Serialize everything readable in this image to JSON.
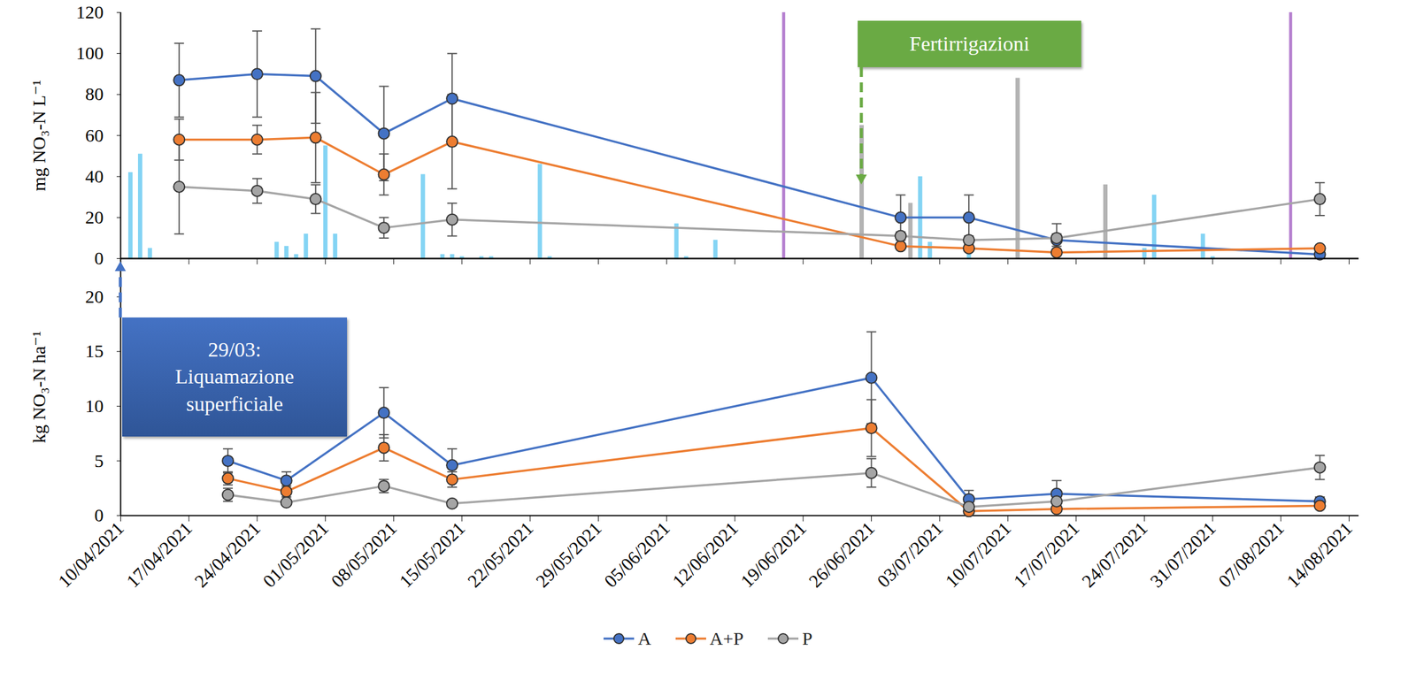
{
  "chart_data": [
    {
      "type": "line",
      "y_label": "mg NO₃-N L⁻¹",
      "x": [
        "2021-04-16",
        "2021-04-24",
        "2021-04-30",
        "2021-05-07",
        "2021-05-14",
        "2021-06-29",
        "2021-07-06",
        "2021-07-15",
        "2021-08-11"
      ],
      "xlim": [
        "2021-04-10",
        "2021-08-15"
      ],
      "xticks": [
        {
          "value": "2021-04-10",
          "label": "10/04/2021"
        },
        {
          "value": "2021-04-17",
          "label": "17/04/2021"
        },
        {
          "value": "2021-04-24",
          "label": "24/04/2021"
        },
        {
          "value": "2021-05-01",
          "label": "01/05/2021"
        },
        {
          "value": "2021-05-08",
          "label": "08/05/2021"
        },
        {
          "value": "2021-05-15",
          "label": "15/05/2021"
        },
        {
          "value": "2021-05-22",
          "label": "22/05/2021"
        },
        {
          "value": "2021-05-29",
          "label": "29/05/2021"
        },
        {
          "value": "2021-06-05",
          "label": "05/06/2021"
        },
        {
          "value": "2021-06-12",
          "label": "12/06/2021"
        },
        {
          "value": "2021-06-19",
          "label": "19/06/2021"
        },
        {
          "value": "2021-06-26",
          "label": "26/06/2021"
        },
        {
          "value": "2021-07-03",
          "label": "03/07/2021"
        },
        {
          "value": "2021-07-10",
          "label": "10/07/2021"
        },
        {
          "value": "2021-07-17",
          "label": "17/07/2021"
        },
        {
          "value": "2021-07-24",
          "label": "24/07/2021"
        },
        {
          "value": "2021-07-31",
          "label": "31/07/2021"
        },
        {
          "value": "2021-08-07",
          "label": "07/08/2021"
        },
        {
          "value": "2021-08-14",
          "label": "14/08/2021"
        }
      ],
      "tick_labels": "y",
      "ylim": [
        0,
        120
      ],
      "yticks": [
        0,
        20,
        40,
        60,
        80,
        100,
        120
      ],
      "series": [
        {
          "name": "A",
          "color": "#4472c4",
          "marker": "circle",
          "values": [
            87,
            90,
            89,
            61,
            78,
            20,
            20,
            9,
            2
          ],
          "errors": [
            18,
            21,
            23,
            23,
            22,
            11,
            11,
            3,
            1
          ]
        },
        {
          "name": "A+P",
          "color": "#ed7d31",
          "marker": "circle",
          "values": [
            58,
            58,
            59,
            41,
            57,
            6,
            5,
            3,
            5
          ],
          "errors": [
            10,
            7,
            22,
            10,
            23,
            1,
            1,
            1,
            1
          ]
        },
        {
          "name": "P",
          "color": "#a5a5a5",
          "marker": "circle",
          "values": [
            35,
            33,
            29,
            15,
            19,
            11,
            9,
            10,
            29
          ],
          "errors": [
            23,
            6,
            7,
            5,
            8,
            2,
            2,
            7,
            8
          ]
        }
      ],
      "bars": [
        {
          "type": "bar",
          "color": "#84d4f4",
          "x": [
            "2021-04-11",
            "2021-04-12",
            "2021-04-13",
            "2021-04-26",
            "2021-04-27",
            "2021-04-28",
            "2021-04-29",
            "2021-05-01",
            "2021-05-02",
            "2021-05-11",
            "2021-05-13",
            "2021-05-14",
            "2021-05-15",
            "2021-05-17",
            "2021-05-18",
            "2021-05-23",
            "2021-05-24",
            "2021-06-06",
            "2021-06-07",
            "2021-06-10",
            "2021-07-01",
            "2021-07-02",
            "2021-07-06",
            "2021-07-24",
            "2021-07-25",
            "2021-07-30",
            "2021-07-31"
          ],
          "values": [
            42,
            51,
            5,
            8,
            6,
            2,
            12,
            55,
            12,
            41,
            2,
            2,
            1,
            1,
            1,
            46,
            1,
            17,
            1,
            9,
            40,
            8,
            5,
            5,
            31,
            12,
            1
          ]
        },
        {
          "type": "bar",
          "color": "#b3b3b3",
          "x": [
            "2021-06-25",
            "2021-06-30",
            "2021-07-11",
            "2021-07-20"
          ],
          "values": [
            65,
            27,
            88,
            36
          ]
        }
      ],
      "vlines": {
        "x": [
          "2021-06-17",
          "2021-08-08"
        ],
        "color": "#b57fcf"
      },
      "annotations": [
        {
          "text": "Fertirrigazioni",
          "color": "#6aaa44"
        }
      ]
    },
    {
      "type": "line",
      "y_label": "kg NO₃-N ha⁻¹",
      "x": [
        "2021-04-21",
        "2021-04-27",
        "2021-05-07",
        "2021-05-14",
        "2021-06-26",
        "2021-07-06",
        "2021-07-15",
        "2021-08-11"
      ],
      "xlim": [
        "2021-04-10",
        "2021-08-15"
      ],
      "xticks": [
        {
          "value": "2021-04-10",
          "label": "10/04/2021"
        },
        {
          "value": "2021-04-17",
          "label": "17/04/2021"
        },
        {
          "value": "2021-04-24",
          "label": "24/04/2021"
        },
        {
          "value": "2021-05-01",
          "label": "01/05/2021"
        },
        {
          "value": "2021-05-08",
          "label": "08/05/2021"
        },
        {
          "value": "2021-05-15",
          "label": "15/05/2021"
        },
        {
          "value": "2021-05-22",
          "label": "22/05/2021"
        },
        {
          "value": "2021-05-29",
          "label": "29/05/2021"
        },
        {
          "value": "2021-06-05",
          "label": "05/06/2021"
        },
        {
          "value": "2021-06-12",
          "label": "12/06/2021"
        },
        {
          "value": "2021-06-19",
          "label": "19/06/2021"
        },
        {
          "value": "2021-06-26",
          "label": "26/06/2021"
        },
        {
          "value": "2021-07-03",
          "label": "03/07/2021"
        },
        {
          "value": "2021-07-10",
          "label": "10/07/2021"
        },
        {
          "value": "2021-07-17",
          "label": "17/07/2021"
        },
        {
          "value": "2021-07-24",
          "label": "24/07/2021"
        },
        {
          "value": "2021-07-31",
          "label": "31/07/2021"
        },
        {
          "value": "2021-08-07",
          "label": "07/08/2021"
        },
        {
          "value": "2021-08-14",
          "label": "14/08/2021"
        }
      ],
      "ylim": [
        0,
        23.5
      ],
      "yticks": [
        0,
        5,
        10,
        15,
        20
      ],
      "legend": "bottom",
      "series": [
        {
          "name": "A",
          "color": "#4472c4",
          "marker": "circle",
          "values": [
            5.0,
            3.2,
            9.4,
            4.6,
            12.6,
            1.5,
            2.0,
            1.3
          ],
          "errors": [
            1.1,
            0.8,
            2.3,
            1.5,
            4.2,
            0.8,
            1.2,
            0.4
          ]
        },
        {
          "name": "A+P",
          "color": "#ed7d31",
          "marker": "circle",
          "values": [
            3.4,
            2.2,
            6.2,
            3.3,
            8.0,
            0.4,
            0.6,
            0.9
          ],
          "errors": [
            0.6,
            0.5,
            1.2,
            0.7,
            2.6,
            0.2,
            0.2,
            0.2
          ]
        },
        {
          "name": "P",
          "color": "#a5a5a5",
          "marker": "circle",
          "values": [
            1.9,
            1.2,
            2.7,
            1.1,
            3.9,
            0.8,
            1.3,
            4.4
          ],
          "errors": [
            0.6,
            0.2,
            0.6,
            0.3,
            1.3,
            0.3,
            0.4,
            1.1
          ]
        }
      ],
      "annotations": [
        {
          "text": "29/03: Liquamazione superficiale",
          "color": "#4472c4"
        }
      ]
    }
  ]
}
